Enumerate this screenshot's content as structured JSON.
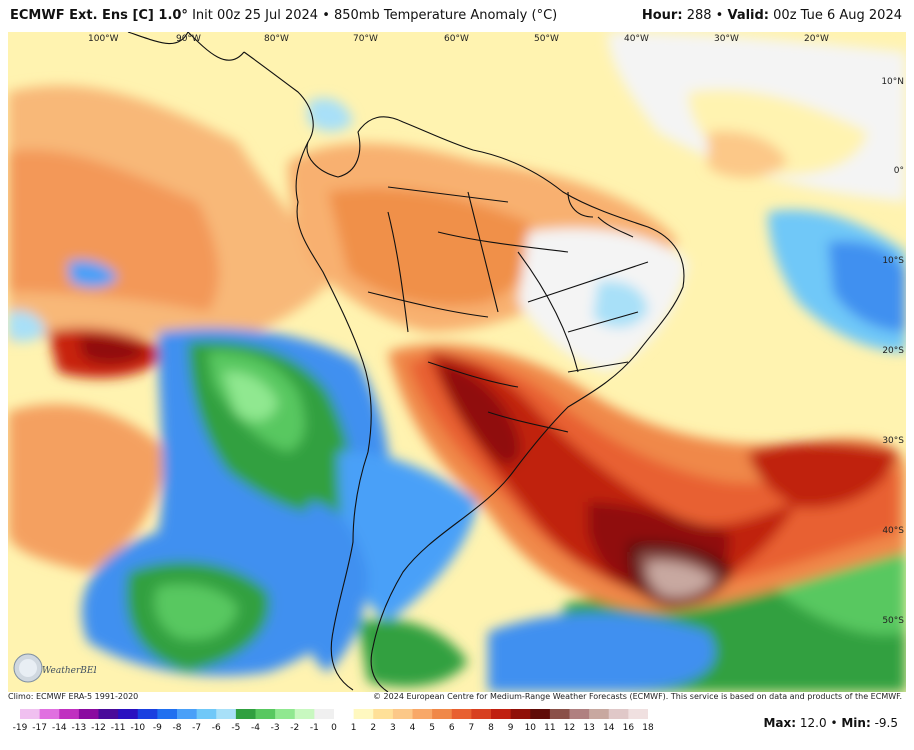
{
  "header": {
    "model": "ECMWF Ext. Ens [C] 1.0°",
    "run": "Init 00z 25 Jul 2024 • 850mb Temperature Anomaly (°C)",
    "hour_label": "Hour:",
    "hour_value": "288",
    "valid_label": "Valid:",
    "valid_value": "00z Tue 6 Aug 2024"
  },
  "map": {
    "lon_labels": [
      "100°W",
      "90°W",
      "80°W",
      "70°W",
      "60°W",
      "50°W",
      "40°W",
      "30°W",
      "20°W"
    ],
    "lat_labels": [
      "10°N",
      "0°",
      "10°S",
      "20°S",
      "30°S",
      "40°S",
      "50°S"
    ],
    "logo_text": "WeatherBELL"
  },
  "footer": {
    "climo": "Climo: ECMWF ERA-5 1991-2020",
    "copyright": "© 2024 European Centre for Medium-Range Weather Forecasts (ECMWF). This service is based on data and products of the ECMWF."
  },
  "legend": {
    "labels": [
      "-19",
      "-17",
      "-14",
      "-13",
      "-12",
      "-11",
      "-10",
      "-9",
      "-8",
      "-7",
      "-6",
      "-5",
      "-4",
      "-3",
      "-2",
      "-1",
      "0",
      "1",
      "2",
      "3",
      "4",
      "5",
      "6",
      "7",
      "8",
      "9",
      "10",
      "11",
      "12",
      "13",
      "14",
      "16",
      "18"
    ],
    "colors": [
      "#f0c0f0",
      "#e070e0",
      "#c030c0",
      "#8a0aa0",
      "#4a0a9a",
      "#2a10c0",
      "#1a40e0",
      "#2070f0",
      "#4aa0f8",
      "#70c8f8",
      "#a8e0f8",
      "#30a040",
      "#58c860",
      "#90e890",
      "#c8f8c0",
      "#f0f0f0",
      "#ffffff",
      "#fff8c0",
      "#ffe098",
      "#fcc888",
      "#f8a868",
      "#f08848",
      "#e86030",
      "#d84020",
      "#c02010",
      "#901008",
      "#600c08",
      "#8a5048",
      "#b08080",
      "#c8a8a0",
      "#e0c8c8",
      "#f0e0e0"
    ],
    "max_label": "Max:",
    "max_value": "12.0",
    "min_label": "Min:",
    "min_value": "-9.5"
  }
}
